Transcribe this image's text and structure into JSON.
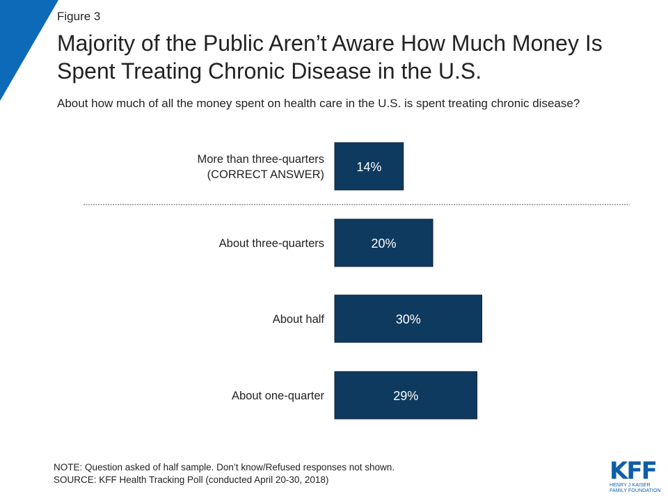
{
  "figure_label": "Figure 3",
  "title": "Majority of the Public Aren’t Aware How Much Money Is Spent Treating Chronic Disease in the U.S.",
  "subtitle": "About how much of all the money spent on health care in the U.S. is spent treating chronic disease?",
  "chart_data": {
    "type": "bar",
    "orientation": "horizontal",
    "categories": [
      [
        "More than three-quarters",
        "(CORRECT ANSWER)"
      ],
      [
        "About three-quarters"
      ],
      [
        "About half"
      ],
      [
        "About one-quarter"
      ]
    ],
    "values": [
      14,
      20,
      30,
      29
    ],
    "value_suffix": "%",
    "divider_after_index": 0,
    "bar_color": "#0f3a5f"
  },
  "notes": {
    "note": "NOTE: Question asked of half sample. Don’t know/Refused responses not shown.",
    "source": "SOURCE: KFF Health Tracking Poll (conducted April 20-30, 2018)"
  },
  "logo": {
    "word": "KFF",
    "line1": "Henry J Kaiser",
    "line2": "Family Foundation",
    "color": "#0d5ea8"
  },
  "accent_color": "#0d6ab8"
}
